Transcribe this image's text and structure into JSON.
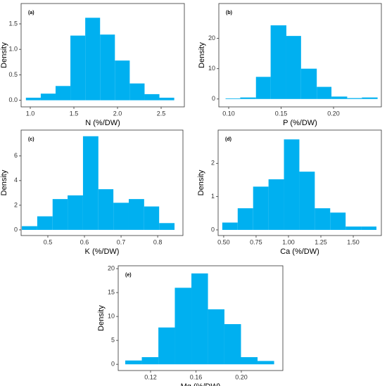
{
  "chart_data": [
    {
      "type": "histogram",
      "label": "(a)",
      "xlabel": "N (%/DW)",
      "ylabel": "Density",
      "color": "#00b0f0",
      "bins": [
        0.95,
        1.12,
        1.29,
        1.46,
        1.63,
        1.8,
        1.97,
        2.14,
        2.31,
        2.48,
        2.65
      ],
      "values": [
        0.05,
        0.13,
        0.28,
        1.27,
        1.62,
        1.29,
        0.78,
        0.33,
        0.12,
        0.05
      ],
      "xlim": [
        0.895,
        2.766
      ],
      "ylim": [
        -0.13,
        1.9
      ],
      "xticks": [
        {
          "value": 1.0,
          "label": "1.0"
        },
        1.5,
        {
          "value": 2.0,
          "label": "2.0"
        },
        2.5
      ],
      "yticks": [
        {
          "value": 0,
          "label": "0.0"
        },
        0.5,
        {
          "value": 1.0,
          "label": "1.0"
        },
        1.5
      ]
    },
    {
      "type": "histogram",
      "label": "(b)",
      "xlabel": "P (%/DW)",
      "ylabel": "Density",
      "color": "#00b0f0",
      "bins": [
        0.097,
        0.111,
        0.126,
        0.14,
        0.155,
        0.169,
        0.184,
        0.198,
        0.213,
        0.227,
        0.242
      ],
      "values": [
        0.2,
        0.5,
        7.3,
        24.3,
        20.8,
        10,
        4,
        0.8,
        0.3,
        0.5
      ],
      "xlim": [
        0.0906,
        0.2456
      ],
      "ylim": [
        -2.6,
        31.5
      ],
      "xticks": [
        {
          "value": 0.1,
          "label": "0.10"
        },
        0.15,
        {
          "value": 0.2,
          "label": "0.20"
        }
      ],
      "yticks": [
        0,
        10,
        20
      ]
    },
    {
      "type": "histogram",
      "label": "(c)",
      "xlabel": "K (%/DW)",
      "ylabel": "Density",
      "color": "#00b0f0",
      "bins": [
        0.429,
        0.471,
        0.513,
        0.554,
        0.596,
        0.638,
        0.679,
        0.721,
        0.763,
        0.804,
        0.846
      ],
      "values": [
        0.3,
        1.1,
        2.5,
        2.8,
        7.6,
        3.3,
        2.2,
        2.5,
        1.9,
        0.55
      ],
      "xlim": [
        0.427,
        0.869
      ],
      "ylim": [
        -0.46,
        8.1
      ],
      "xticks": [
        0.5,
        0.6,
        0.7,
        0.8
      ],
      "yticks": [
        0,
        2,
        4,
        6
      ]
    },
    {
      "type": "histogram",
      "label": "(d)",
      "xlabel": "Ca (%/DW)",
      "ylabel": "Density",
      "color": "#00b0f0",
      "bins": [
        0.489,
        0.608,
        0.727,
        0.846,
        0.965,
        1.084,
        1.203,
        1.322,
        1.441,
        1.56,
        1.679
      ],
      "values": [
        0.22,
        0.65,
        1.3,
        1.52,
        2.72,
        1.75,
        0.65,
        0.52,
        0.1,
        0.1
      ],
      "xlim": [
        0.457,
        1.717
      ],
      "ylim": [
        -0.17,
        3.0
      ],
      "xticks": [
        {
          "value": 0.5,
          "label": "0.50"
        },
        0.75,
        {
          "value": 1.0,
          "label": "1.00"
        },
        1.25,
        {
          "value": 1.5,
          "label": "1.50"
        }
      ],
      "yticks": [
        0,
        1,
        2
      ]
    },
    {
      "type": "histogram",
      "label": "(e)",
      "xlabel": "Mg (%/DW)",
      "ylabel": "Density",
      "color": "#00b0f0",
      "bins": [
        0.0977,
        0.1123,
        0.1269,
        0.1414,
        0.156,
        0.1706,
        0.1851,
        0.1997,
        0.2143,
        0.2289
      ],
      "values": [
        0.8,
        1.5,
        7.7,
        16,
        19,
        11.5,
        8.4,
        1.5,
        0.7
      ],
      "xlim": [
        0.0915,
        0.2366
      ],
      "ylim": [
        -1.3,
        20.6
      ],
      "xticks": [
        0.12,
        0.16,
        {
          "value": 0.2,
          "label": "0.20"
        }
      ],
      "yticks": [
        0,
        5,
        10,
        15,
        20
      ]
    }
  ]
}
